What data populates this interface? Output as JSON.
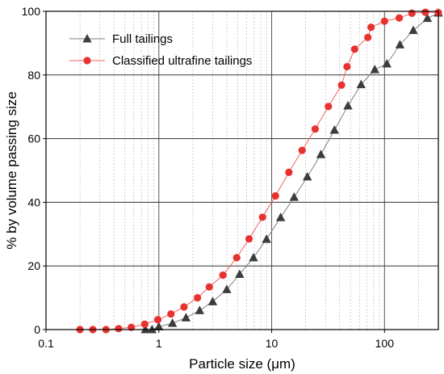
{
  "chart_data": {
    "type": "line",
    "xlabel": "Particle size (μm)",
    "ylabel": "% by volume passing size",
    "x_scale": "log",
    "xlim": [
      0.1,
      300
    ],
    "ylim": [
      0,
      100
    ],
    "x_ticks": [
      0.1,
      1,
      10,
      100
    ],
    "x_tick_labels": [
      "0.1",
      "1",
      "10",
      "100"
    ],
    "y_ticks": [
      0,
      20,
      40,
      60,
      80,
      100
    ],
    "y_tick_labels": [
      "0",
      "20",
      "40",
      "60",
      "80",
      "100"
    ],
    "grid": "major and minor vertical, major horizontal",
    "legend_position": "top-left",
    "series": [
      {
        "name": "Full tailings",
        "marker": "triangle",
        "color": "#3c3c3c",
        "line_color": "#808080",
        "x": [
          0.76,
          0.87,
          1.0,
          1.32,
          1.74,
          2.3,
          3.0,
          4.0,
          5.2,
          6.9,
          9.0,
          12.0,
          15.8,
          20.7,
          27.3,
          36.0,
          47.4,
          62.0,
          82.0,
          105.0,
          137.0,
          180.0,
          240.0,
          300.0
        ],
        "y": [
          0.0,
          0.0,
          0.9,
          2.0,
          3.7,
          6.0,
          8.8,
          12.6,
          17.4,
          22.6,
          28.4,
          35.2,
          41.6,
          48.0,
          55.0,
          62.7,
          70.3,
          77.0,
          81.7,
          83.5,
          89.5,
          94.0,
          97.8,
          99.5
        ]
      },
      {
        "name": "Classified ultrafine tailings",
        "marker": "circle",
        "color": "#e8322f",
        "line_color": "#f26060",
        "x": [
          0.2,
          0.26,
          0.34,
          0.44,
          0.57,
          0.75,
          0.98,
          1.28,
          1.67,
          2.2,
          2.8,
          3.7,
          4.9,
          6.3,
          8.3,
          10.8,
          14.2,
          18.6,
          24.3,
          31.8,
          41.6,
          46.5,
          54.4,
          71.2,
          76.0,
          100.0,
          135.0,
          175.0,
          230.0,
          300.0
        ],
        "y": [
          0.0,
          0.0,
          0.0,
          0.3,
          0.7,
          1.7,
          3.1,
          4.9,
          7.1,
          10.0,
          13.4,
          17.1,
          22.6,
          28.5,
          35.3,
          42.0,
          49.4,
          56.3,
          63.0,
          70.1,
          76.8,
          82.6,
          88.1,
          91.8,
          95.0,
          96.9,
          97.9,
          99.4,
          99.7,
          99.6
        ]
      }
    ]
  }
}
